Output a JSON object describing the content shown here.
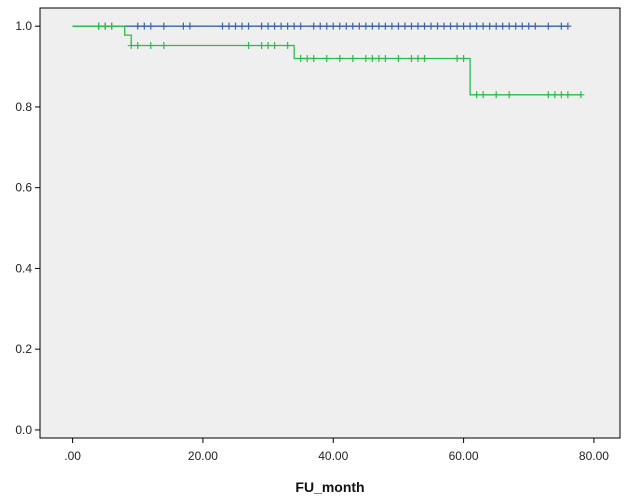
{
  "chart_data": {
    "type": "line",
    "step": true,
    "xlabel": "FU_month",
    "ylabel": "",
    "xlim": [
      -5,
      84
    ],
    "ylim": [
      -0.02,
      1.045
    ],
    "xticks": [
      0,
      20,
      40,
      60,
      80
    ],
    "xtick_labels": [
      ".00",
      "20.00",
      "40.00",
      "60.00",
      "80.00"
    ],
    "yticks": [
      0.0,
      0.2,
      0.4,
      0.6,
      0.8,
      1.0
    ],
    "ytick_labels": [
      "0.0",
      "0.2",
      "0.4",
      "0.6",
      "0.8",
      "1.0"
    ],
    "grid": false,
    "background": "#efefef",
    "series": [
      {
        "color": "#3f5fa8",
        "steps": [
          [
            0,
            1.0
          ],
          [
            76,
            1.0
          ]
        ],
        "censored": [
          [
            4,
            1.0
          ],
          [
            5,
            1.0
          ],
          [
            6,
            1.0
          ],
          [
            10,
            1.0
          ],
          [
            11,
            1.0
          ],
          [
            12,
            1.0
          ],
          [
            14,
            1.0
          ],
          [
            17,
            1.0
          ],
          [
            18,
            1.0
          ],
          [
            23,
            1.0
          ],
          [
            24,
            1.0
          ],
          [
            25,
            1.0
          ],
          [
            26,
            1.0
          ],
          [
            27,
            1.0
          ],
          [
            29,
            1.0
          ],
          [
            30,
            1.0
          ],
          [
            31,
            1.0
          ],
          [
            32,
            1.0
          ],
          [
            33,
            1.0
          ],
          [
            34,
            1.0
          ],
          [
            35,
            1.0
          ],
          [
            37,
            1.0
          ],
          [
            38,
            1.0
          ],
          [
            39,
            1.0
          ],
          [
            40,
            1.0
          ],
          [
            41,
            1.0
          ],
          [
            42,
            1.0
          ],
          [
            43,
            1.0
          ],
          [
            44,
            1.0
          ],
          [
            45,
            1.0
          ],
          [
            46,
            1.0
          ],
          [
            47,
            1.0
          ],
          [
            48,
            1.0
          ],
          [
            49,
            1.0
          ],
          [
            50,
            1.0
          ],
          [
            51,
            1.0
          ],
          [
            52,
            1.0
          ],
          [
            53,
            1.0
          ],
          [
            54,
            1.0
          ],
          [
            55,
            1.0
          ],
          [
            56,
            1.0
          ],
          [
            57,
            1.0
          ],
          [
            58,
            1.0
          ],
          [
            59,
            1.0
          ],
          [
            60,
            1.0
          ],
          [
            61,
            1.0
          ],
          [
            62,
            1.0
          ],
          [
            63,
            1.0
          ],
          [
            64,
            1.0
          ],
          [
            65,
            1.0
          ],
          [
            66,
            1.0
          ],
          [
            67,
            1.0
          ],
          [
            68,
            1.0
          ],
          [
            69,
            1.0
          ],
          [
            70,
            1.0
          ],
          [
            71,
            1.0
          ],
          [
            73,
            1.0
          ],
          [
            75,
            1.0
          ],
          [
            76,
            1.0
          ]
        ]
      },
      {
        "color": "#2dbb50",
        "steps": [
          [
            0,
            1.0
          ],
          [
            8,
            1.0
          ],
          [
            8,
            0.978
          ],
          [
            9,
            0.978
          ],
          [
            9,
            0.952
          ],
          [
            34,
            0.952
          ],
          [
            34,
            0.92
          ],
          [
            61,
            0.92
          ],
          [
            61,
            0.83
          ],
          [
            78,
            0.83
          ]
        ],
        "censored": [
          [
            4,
            1.0
          ],
          [
            5,
            1.0
          ],
          [
            6,
            1.0
          ],
          [
            9,
            0.952
          ],
          [
            10,
            0.952
          ],
          [
            12,
            0.952
          ],
          [
            14,
            0.952
          ],
          [
            27,
            0.952
          ],
          [
            29,
            0.952
          ],
          [
            30,
            0.952
          ],
          [
            31,
            0.952
          ],
          [
            33,
            0.952
          ],
          [
            35,
            0.92
          ],
          [
            36,
            0.92
          ],
          [
            37,
            0.92
          ],
          [
            39,
            0.92
          ],
          [
            41,
            0.92
          ],
          [
            43,
            0.92
          ],
          [
            45,
            0.92
          ],
          [
            46,
            0.92
          ],
          [
            47,
            0.92
          ],
          [
            48,
            0.92
          ],
          [
            50,
            0.92
          ],
          [
            52,
            0.92
          ],
          [
            53,
            0.92
          ],
          [
            54,
            0.92
          ],
          [
            59,
            0.92
          ],
          [
            60,
            0.92
          ],
          [
            62,
            0.83
          ],
          [
            63,
            0.83
          ],
          [
            65,
            0.83
          ],
          [
            67,
            0.83
          ],
          [
            73,
            0.83
          ],
          [
            74,
            0.83
          ],
          [
            75,
            0.83
          ],
          [
            76,
            0.83
          ],
          [
            78,
            0.83
          ]
        ]
      }
    ]
  }
}
